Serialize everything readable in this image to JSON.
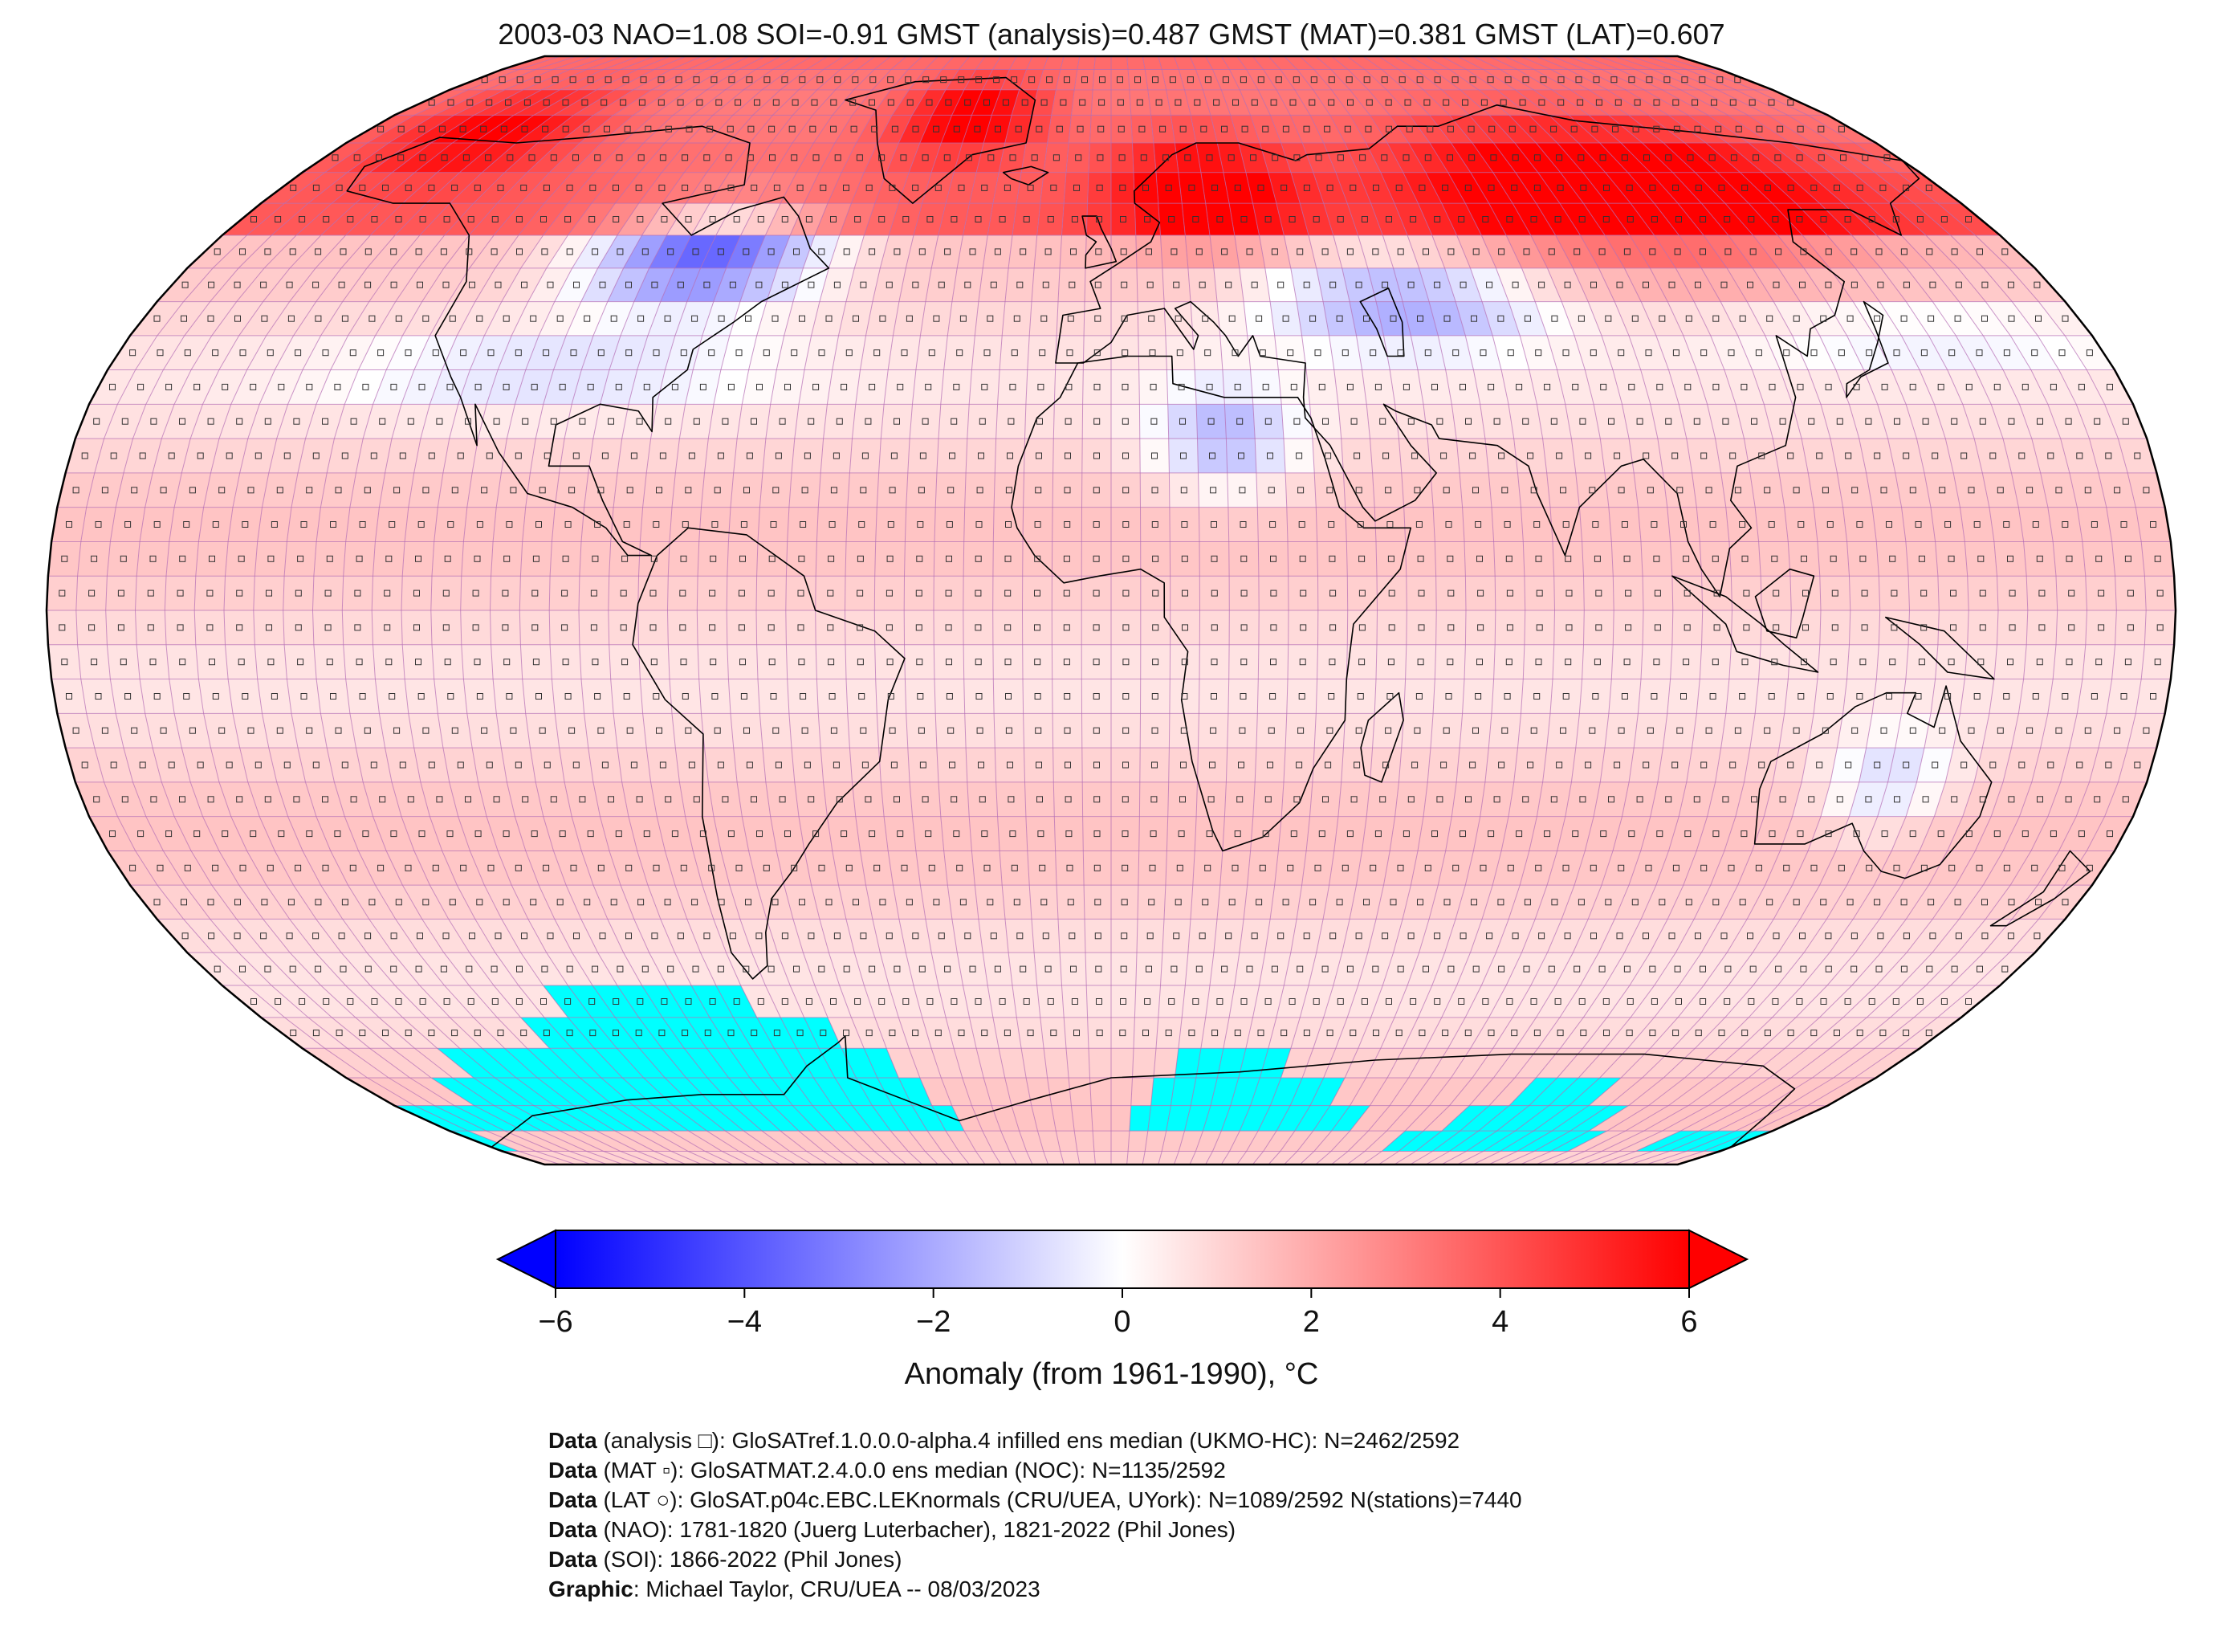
{
  "title": "2003-03 NAO=1.08 SOI=-0.91 GMST (analysis)=0.487 GMST (MAT)=0.381 GMST (LAT)=0.607",
  "map": {
    "projection": "Robinson",
    "fill_regions": "anomaly grid 5x5 deg",
    "missing_color": "#00ffff",
    "grid_line_color": "#b36bb3",
    "coast_color": "#000000"
  },
  "colorbar": {
    "ticks": [
      "−6",
      "−4",
      "−2",
      "0",
      "2",
      "4",
      "6"
    ],
    "tick_values": [
      -6,
      -4,
      -2,
      0,
      2,
      4,
      6
    ],
    "min": -6,
    "max": 6,
    "label": "Anomaly (from 1961-1990), °C",
    "colors": [
      "#0000ff",
      "#ffffff",
      "#ff0000"
    ]
  },
  "credits": [
    {
      "key": "Data",
      "text": " (analysis □): GloSATref.1.0.0.0-alpha.4 infilled ens median (UKMO-HC): N=2462/2592"
    },
    {
      "key": "Data",
      "text": " (MAT ▫): GloSATMAT.2.4.0.0 ens median (NOC): N=1135/2592"
    },
    {
      "key": "Data",
      "text": " (LAT ○): GloSAT.p04c.EBC.LEKnormals (CRU/UEA, UYork): N=1089/2592 N(stations)=7440"
    },
    {
      "key": "Data",
      "text": " (NAO): 1781-1820 (Juerg Luterbacher), 1821-2022 (Phil Jones)"
    },
    {
      "key": "Data",
      "text": " (SOI): 1866-2022 (Phil Jones)"
    },
    {
      "key": "Graphic",
      "text": ": Michael Taylor, CRU/UEA -- 08/03/2023"
    }
  ]
}
